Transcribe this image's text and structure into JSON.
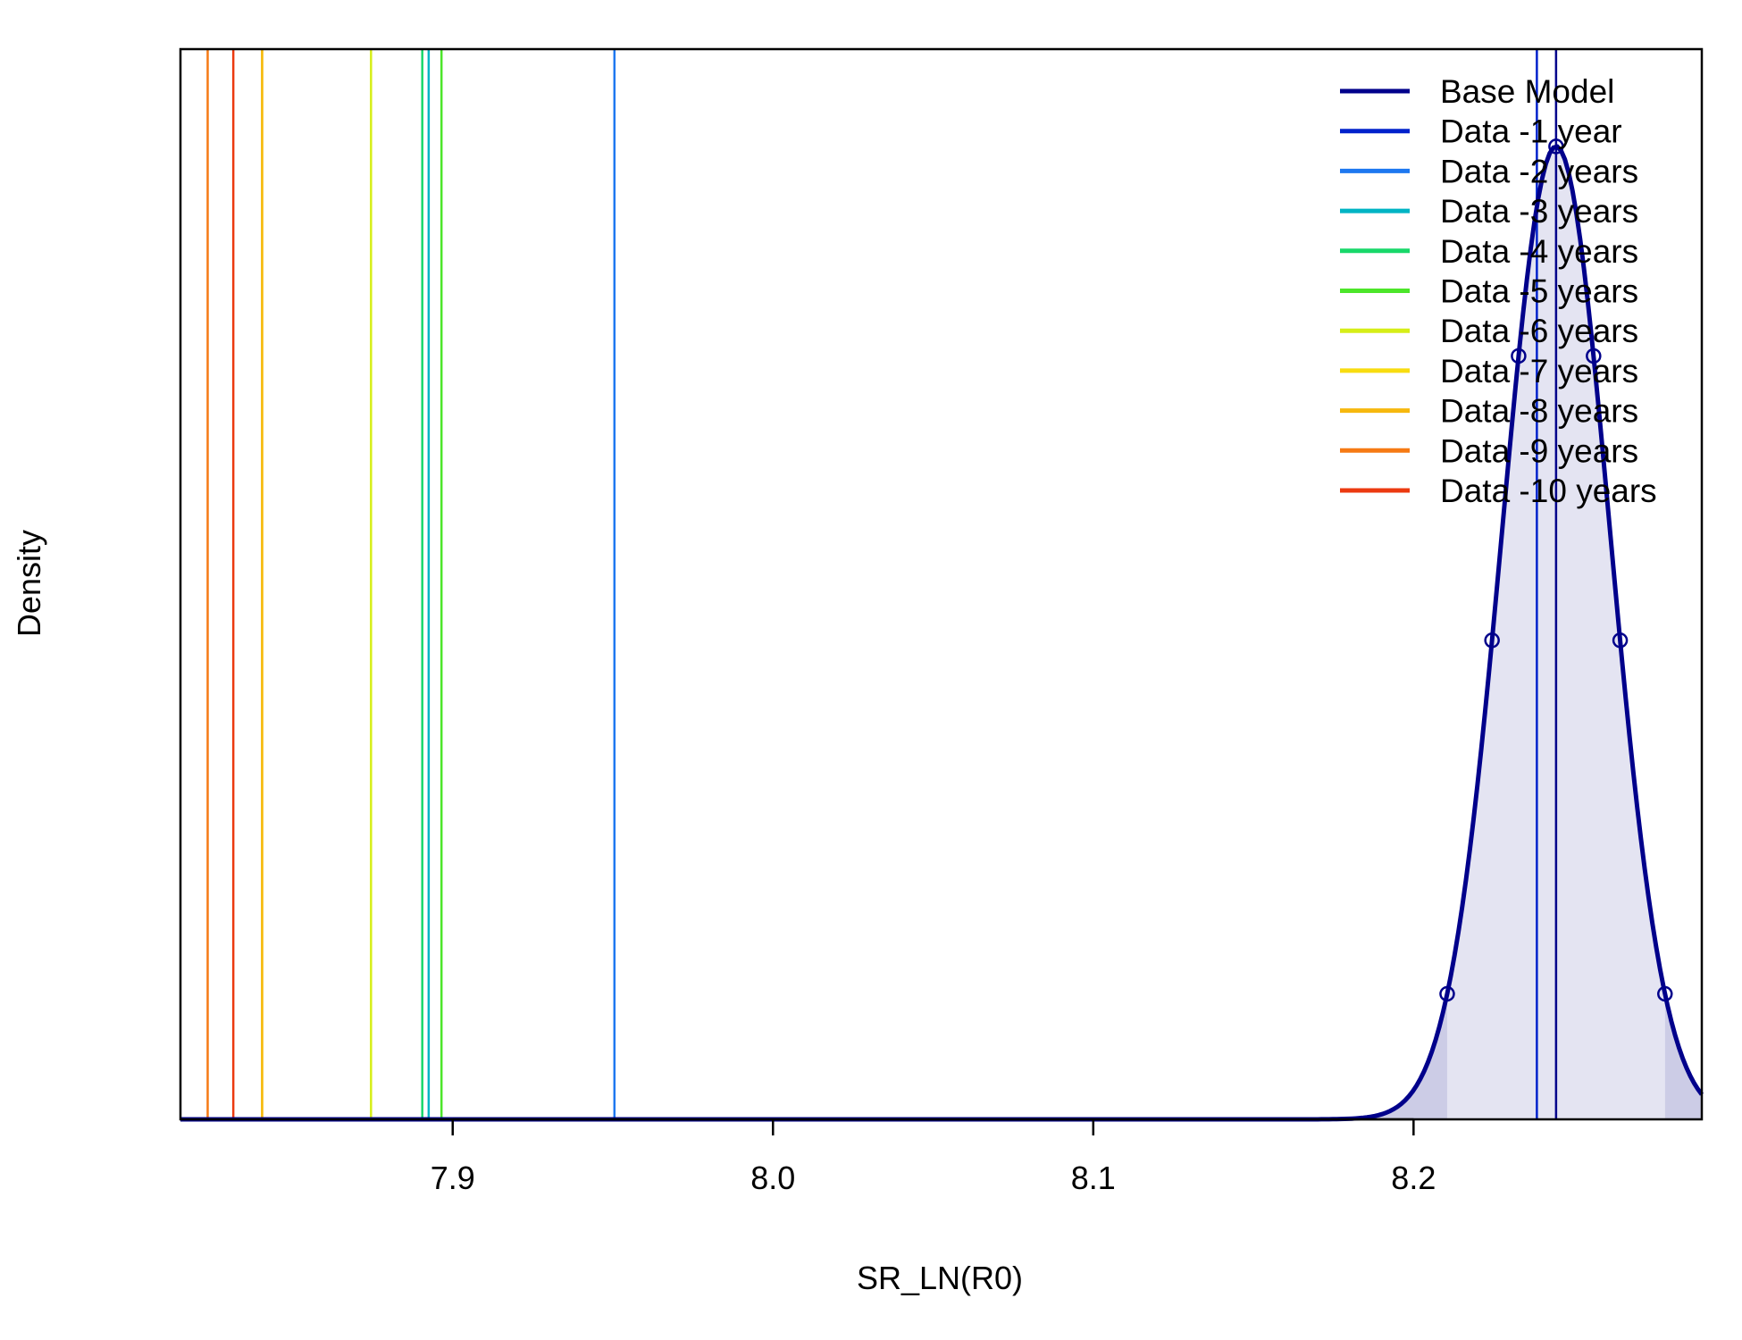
{
  "chart_data": {
    "type": "line",
    "title": "",
    "xlabel": "SR_LN(R0)",
    "ylabel": "Density",
    "xlim": [
      7.815,
      8.29
    ],
    "ylim": [
      0,
      1.1
    ],
    "x_ticks": [
      7.9,
      8.0,
      8.1,
      8.2
    ],
    "x_tick_labels": [
      "7.9",
      "8.0",
      "8.1",
      "8.2"
    ],
    "y_ticks_shown": false,
    "grid": false,
    "legend_position": "top-right",
    "base_model": {
      "name": "Base Model",
      "color": "#00008B",
      "distribution": "normal",
      "mean": 8.2445,
      "sd": 0.0168,
      "peak_density": 1.0,
      "marked_quantiles_x": [
        8.2105,
        8.2245,
        8.2328,
        8.2445,
        8.2562,
        8.2645,
        8.2785
      ],
      "interval_95": [
        8.2105,
        8.2785
      ],
      "fill_color": "#E4E4F2",
      "tail_fill_color": "#CCCCE6"
    },
    "series": [
      {
        "name": "Base Model",
        "color": "#00008B",
        "x": 8.2445
      },
      {
        "name": "Data -1 year",
        "color": "#0022CC",
        "x": 8.2385
      },
      {
        "name": "Data -2 years",
        "color": "#1E78F0",
        "x": 7.9505
      },
      {
        "name": "Data -3 years",
        "color": "#00B4C4",
        "x": 7.8925
      },
      {
        "name": "Data -4 years",
        "color": "#18D86A",
        "x": 7.8905
      },
      {
        "name": "Data -5 years",
        "color": "#4CE62A",
        "x": 7.8965
      },
      {
        "name": "Data -6 years",
        "color": "#D6EE18",
        "x": 7.8745
      },
      {
        "name": "Data -7 years",
        "color": "#F8DC10",
        "x": 7.8405
      },
      {
        "name": "Data -8 years",
        "color": "#F6B80E",
        "x": 7.8405
      },
      {
        "name": "Data -9 years",
        "color": "#F67A14",
        "x": 7.8235
      },
      {
        "name": "Data -10 years",
        "color": "#EC3A10",
        "x": 7.8315
      }
    ]
  }
}
